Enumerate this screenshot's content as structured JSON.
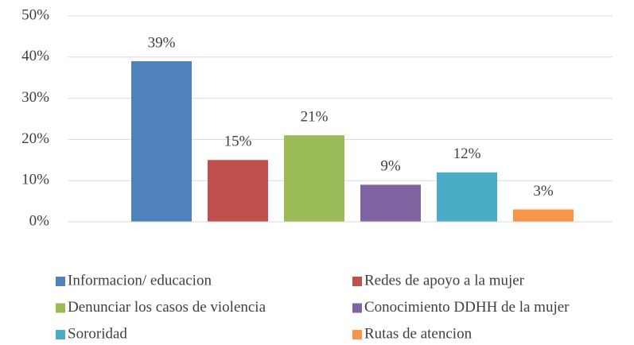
{
  "chart_data": {
    "type": "bar",
    "series": [
      {
        "name": "Informacion/ educacion",
        "color": "#4f81bd",
        "values": [
          39
        ],
        "value_labels": [
          "39%"
        ]
      },
      {
        "name": "Redes de apoyo a la mujer",
        "color": "#c0504d",
        "values": [
          15
        ],
        "value_labels": [
          "15%"
        ]
      },
      {
        "name": "Denunciar los casos de violencia",
        "color": "#9bbb59",
        "values": [
          21
        ],
        "value_labels": [
          "21%"
        ]
      },
      {
        "name": "Conocimiento DDHH de la mujer",
        "color": "#8064a2",
        "values": [
          9
        ],
        "value_labels": [
          "9%"
        ]
      },
      {
        "name": "Sororidad",
        "color": "#4bacc6",
        "values": [
          12
        ],
        "value_labels": [
          "12%"
        ]
      },
      {
        "name": "Rutas de atencion",
        "color": "#f79646",
        "values": [
          3
        ],
        "value_labels": [
          "3%"
        ]
      }
    ],
    "ylim": [
      0,
      50
    ],
    "yticks": [
      {
        "value": 0,
        "label": "0%"
      },
      {
        "value": 10,
        "label": "10%"
      },
      {
        "value": 20,
        "label": "20%"
      },
      {
        "value": 30,
        "label": "30%"
      },
      {
        "value": 40,
        "label": "40%"
      },
      {
        "value": 50,
        "label": "50%"
      }
    ],
    "grid": true,
    "legend": "bottom"
  }
}
